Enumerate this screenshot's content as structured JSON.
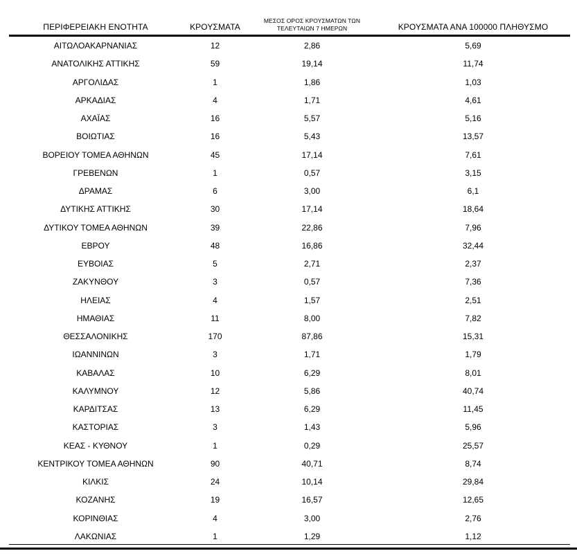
{
  "colors": {
    "background": "#ffffff",
    "text": "#000000",
    "rule": "#000000"
  },
  "table": {
    "columns": {
      "region": {
        "label": "ΠΕΡΙΦΕΡΕΙΑΚΗ ΕΝΟΤΗΤΑ"
      },
      "cases": {
        "label": "ΚΡΟΥΣΜΑΤΑ"
      },
      "avg7": {
        "label_line1": "ΜΕΣΟΣ ΟΡΟΣ ΚΡΟΥΣΜΑΤΩΝ ΤΩΝ",
        "label_line2": "ΤΕΛΕΥΤΑΙΩΝ 7 ΗΜΕΡΩΝ"
      },
      "per100k": {
        "label": "ΚΡΟΥΣΜΑΤΑ ΑΝΑ 100000 ΠΛΗΘΥΣΜΟ"
      }
    },
    "rows": [
      {
        "region": "ΑΙΤΩΛΟΑΚΑΡΝΑΝΙΑΣ",
        "cases": "12",
        "avg7": "2,86",
        "per100k": "5,69"
      },
      {
        "region": "ΑΝΑΤΟΛΙΚΗΣ ΑΤΤΙΚΗΣ",
        "cases": "59",
        "avg7": "19,14",
        "per100k": "11,74"
      },
      {
        "region": "ΑΡΓΟΛΙΔΑΣ",
        "cases": "1",
        "avg7": "1,86",
        "per100k": "1,03"
      },
      {
        "region": "ΑΡΚΑΔΙΑΣ",
        "cases": "4",
        "avg7": "1,71",
        "per100k": "4,61"
      },
      {
        "region": "ΑΧΑΪΑΣ",
        "cases": "16",
        "avg7": "5,57",
        "per100k": "5,16"
      },
      {
        "region": "ΒΟΙΩΤΙΑΣ",
        "cases": "16",
        "avg7": "5,43",
        "per100k": "13,57"
      },
      {
        "region": "ΒΟΡΕΙΟΥ ΤΟΜΕΑ ΑΘΗΝΩΝ",
        "cases": "45",
        "avg7": "17,14",
        "per100k": "7,61"
      },
      {
        "region": "ΓΡΕΒΕΝΩΝ",
        "cases": "1",
        "avg7": "0,57",
        "per100k": "3,15"
      },
      {
        "region": "ΔΡΑΜΑΣ",
        "cases": "6",
        "avg7": "3,00",
        "per100k": "6,1"
      },
      {
        "region": "ΔΥΤΙΚΗΣ ΑΤΤΙΚΗΣ",
        "cases": "30",
        "avg7": "17,14",
        "per100k": "18,64"
      },
      {
        "region": "ΔΥΤΙΚΟΥ ΤΟΜΕΑ ΑΘΗΝΩΝ",
        "cases": "39",
        "avg7": "22,86",
        "per100k": "7,96"
      },
      {
        "region": "ΕΒΡΟΥ",
        "cases": "48",
        "avg7": "16,86",
        "per100k": "32,44"
      },
      {
        "region": "ΕΥΒΟΙΑΣ",
        "cases": "5",
        "avg7": "2,71",
        "per100k": "2,37"
      },
      {
        "region": "ΖΑΚΥΝΘΟΥ",
        "cases": "3",
        "avg7": "0,57",
        "per100k": "7,36"
      },
      {
        "region": "ΗΛΕΙΑΣ",
        "cases": "4",
        "avg7": "1,57",
        "per100k": "2,51"
      },
      {
        "region": "ΗΜΑΘΙΑΣ",
        "cases": "11",
        "avg7": "8,00",
        "per100k": "7,82"
      },
      {
        "region": "ΘΕΣΣΑΛΟΝΙΚΗΣ",
        "cases": "170",
        "avg7": "87,86",
        "per100k": "15,31"
      },
      {
        "region": "ΙΩΑΝΝΙΝΩΝ",
        "cases": "3",
        "avg7": "1,71",
        "per100k": "1,79"
      },
      {
        "region": "ΚΑΒΑΛΑΣ",
        "cases": "10",
        "avg7": "6,29",
        "per100k": "8,01"
      },
      {
        "region": "ΚΑΛΥΜΝΟΥ",
        "cases": "12",
        "avg7": "5,86",
        "per100k": "40,74"
      },
      {
        "region": "ΚΑΡΔΙΤΣΑΣ",
        "cases": "13",
        "avg7": "6,29",
        "per100k": "11,45"
      },
      {
        "region": "ΚΑΣΤΟΡΙΑΣ",
        "cases": "3",
        "avg7": "1,43",
        "per100k": "5,96"
      },
      {
        "region": "ΚΕΑΣ - ΚΥΘΝΟΥ",
        "cases": "1",
        "avg7": "0,29",
        "per100k": "25,57"
      },
      {
        "region": "ΚΕΝΤΡΙΚΟΥ ΤΟΜΕΑ ΑΘΗΝΩΝ",
        "cases": "90",
        "avg7": "40,71",
        "per100k": "8,74"
      },
      {
        "region": "ΚΙΛΚΙΣ",
        "cases": "24",
        "avg7": "10,14",
        "per100k": "29,84"
      },
      {
        "region": "ΚΟΖΑΝΗΣ",
        "cases": "19",
        "avg7": "16,57",
        "per100k": "12,65"
      },
      {
        "region": "ΚΟΡΙΝΘΙΑΣ",
        "cases": "4",
        "avg7": "3,00",
        "per100k": "2,76"
      },
      {
        "region": "ΛΑΚΩΝΙΑΣ",
        "cases": "1",
        "avg7": "1,29",
        "per100k": "1,12"
      }
    ]
  }
}
